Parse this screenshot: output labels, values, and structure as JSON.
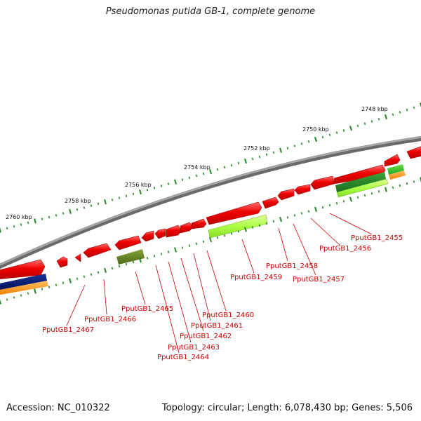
{
  "title": "Pseudomonas putida GB-1, complete genome",
  "footer": {
    "accession": "Accession: NC_010322",
    "summary": "Topology: circular; Length: 6,078,430 bp; Genes: 5,506"
  },
  "colors": {
    "backbone": "#888888",
    "cds": "#ee0000",
    "rna": "#aaff44",
    "dark_green": "#2a8a2a",
    "olive": "#6b8a22",
    "navy": "#001a77",
    "orange": "#ff9a10",
    "tick": "#1e8a1e",
    "label": "#cc0000"
  },
  "scale_labels": [
    "2760 kbp",
    "2758 kbp",
    "2756 kbp",
    "2754 kbp",
    "2752 kbp",
    "2750 kbp",
    "2748 kbp"
  ],
  "gene_labels": [
    "PputGB1_2455",
    "PputGB1_2456",
    "PputGB1_2457",
    "PputGB1_2458",
    "PputGB1_2459",
    "PputGB1_2460",
    "PputGB1_2461",
    "PputGB1_2462",
    "PputGB1_2463",
    "PputGB1_2464",
    "PputGB1_2465",
    "PputGB1_2466",
    "PputGB1_2467"
  ]
}
